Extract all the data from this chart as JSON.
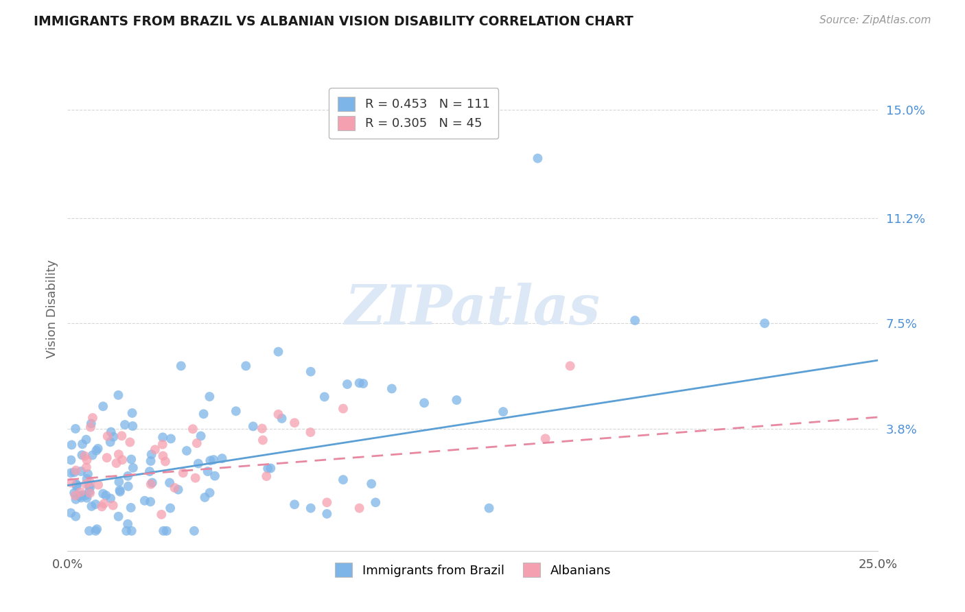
{
  "title": "IMMIGRANTS FROM BRAZIL VS ALBANIAN VISION DISABILITY CORRELATION CHART",
  "source": "Source: ZipAtlas.com",
  "xlabel": "",
  "ylabel": "Vision Disability",
  "xlim": [
    0.0,
    0.25
  ],
  "ylim": [
    -0.005,
    0.165
  ],
  "xticks": [
    0.0,
    0.25
  ],
  "xticklabels": [
    "0.0%",
    "25.0%"
  ],
  "yticks_right": [
    0.038,
    0.075,
    0.112,
    0.15
  ],
  "ytick_labels_right": [
    "3.8%",
    "7.5%",
    "11.2%",
    "15.0%"
  ],
  "grid_color": "#cccccc",
  "background_color": "#ffffff",
  "series1_color": "#7EB5E8",
  "series2_color": "#F5A0B0",
  "series1_line_color": "#5B9FD4",
  "series2_line_color": "#E888A0",
  "series1_label": "Immigrants from Brazil",
  "series2_label": "Albanians",
  "series1_R": 0.453,
  "series1_N": 111,
  "series2_R": 0.305,
  "series2_N": 45,
  "title_color": "#1a1a1a",
  "axis_label_color": "#666666",
  "tick_label_color": "#4a90d9",
  "watermark_text": "ZIPatlas",
  "watermark_color": "#dce8f5",
  "blue_trendline_start_y": 0.018,
  "blue_trendline_end_y": 0.062,
  "pink_trendline_start_y": 0.02,
  "pink_trendline_end_y": 0.042
}
